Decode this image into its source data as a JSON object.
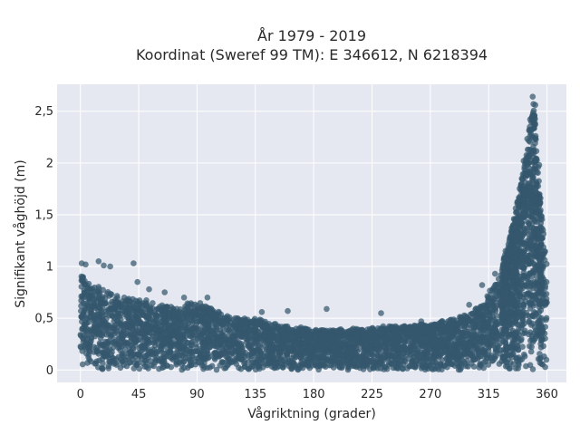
{
  "chart_data": {
    "type": "scatter",
    "title_line1": "År 1979 - 2019",
    "title_line2": "Koordinat (Sweref 99 TM): E 346612, N 6218394",
    "xlabel": "Vågriktning (grader)",
    "ylabel": "Signifikant våghöjd (m)",
    "xlim": [
      -18,
      375
    ],
    "ylim": [
      -0.12,
      2.76
    ],
    "xticks": [
      0,
      45,
      90,
      135,
      180,
      225,
      270,
      315,
      360
    ],
    "xtick_labels": [
      "0",
      "45",
      "90",
      "135",
      "180",
      "225",
      "270",
      "315",
      "360"
    ],
    "yticks": [
      0,
      0.5,
      1,
      1.5,
      2,
      2.5
    ],
    "ytick_labels": [
      "0",
      "0,5",
      "1",
      "1,5",
      "2",
      "2,5"
    ],
    "grid": true,
    "marker_color": "#34586e",
    "plot_background": "#e5e8f0",
    "envelope_direction": [
      0,
      10,
      20,
      30,
      45,
      60,
      75,
      90,
      100,
      115,
      135,
      160,
      180,
      200,
      225,
      250,
      270,
      285,
      300,
      310,
      320,
      330,
      338,
      345,
      350,
      355,
      360
    ],
    "envelope_max_height": [
      0.95,
      0.85,
      0.78,
      0.72,
      0.7,
      0.65,
      0.62,
      0.68,
      0.62,
      0.52,
      0.5,
      0.44,
      0.4,
      0.4,
      0.42,
      0.44,
      0.45,
      0.5,
      0.55,
      0.65,
      0.85,
      1.2,
      1.7,
      2.3,
      2.6,
      1.6,
      1.05
    ],
    "outliers": [
      {
        "x": 1,
        "y": 1.03
      },
      {
        "x": 4,
        "y": 1.02
      },
      {
        "x": 14,
        "y": 1.05
      },
      {
        "x": 18,
        "y": 1.01
      },
      {
        "x": 23,
        "y": 1.0
      },
      {
        "x": 41,
        "y": 1.03
      },
      {
        "x": 44,
        "y": 0.85
      },
      {
        "x": 53,
        "y": 0.78
      },
      {
        "x": 65,
        "y": 0.75
      },
      {
        "x": 80,
        "y": 0.7
      },
      {
        "x": 98,
        "y": 0.7
      },
      {
        "x": 140,
        "y": 0.56
      },
      {
        "x": 160,
        "y": 0.57
      },
      {
        "x": 190,
        "y": 0.59
      },
      {
        "x": 232,
        "y": 0.55
      },
      {
        "x": 263,
        "y": 0.47
      },
      {
        "x": 300,
        "y": 0.63
      },
      {
        "x": 310,
        "y": 0.82
      },
      {
        "x": 320,
        "y": 0.93
      },
      {
        "x": 328,
        "y": 1.15
      },
      {
        "x": 336,
        "y": 1.38
      },
      {
        "x": 342,
        "y": 2.02
      },
      {
        "x": 347,
        "y": 2.42
      },
      {
        "x": 349,
        "y": 2.64
      },
      {
        "x": 351,
        "y": 2.56
      },
      {
        "x": 354,
        "y": 1.98
      },
      {
        "x": 355,
        "y": 1.66
      }
    ]
  }
}
